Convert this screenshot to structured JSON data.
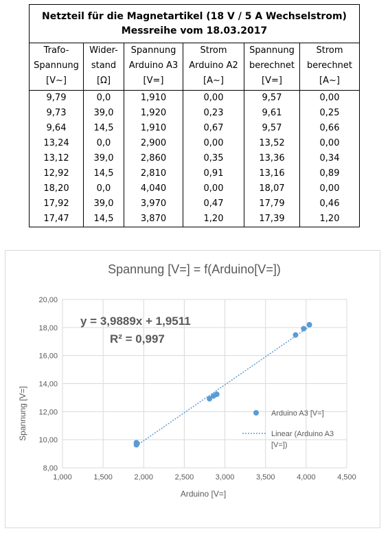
{
  "table": {
    "title_line1": "Netzteil für die Magnetartikel (18 V / 5 A Wechselstrom)",
    "title_line2": "Messreihe vom 18.03.2017",
    "headers": [
      [
        "Trafo-",
        "Spannung",
        "[V~]"
      ],
      [
        "Wider-",
        "stand",
        "[Ω]"
      ],
      [
        "Spannung",
        "Arduino A3",
        "[V=]"
      ],
      [
        "Strom",
        "Arduino A2",
        "[A~]"
      ],
      [
        "Spannung",
        "berechnet",
        "[V=]"
      ],
      [
        "Strom",
        "berechnet",
        "[A~]"
      ]
    ],
    "rows": [
      [
        "9,79",
        "0,0",
        "1,910",
        "0,00",
        "9,57",
        "0,00"
      ],
      [
        "9,73",
        "39,0",
        "1,920",
        "0,23",
        "9,61",
        "0,25"
      ],
      [
        "9,64",
        "14,5",
        "1,910",
        "0,67",
        "9,57",
        "0,66"
      ],
      [
        "13,24",
        "0,0",
        "2,900",
        "0,00",
        "13,52",
        "0,00"
      ],
      [
        "13,12",
        "39,0",
        "2,860",
        "0,35",
        "13,36",
        "0,34"
      ],
      [
        "12,92",
        "14,5",
        "2,810",
        "0,91",
        "13,16",
        "0,89"
      ],
      [
        "18,20",
        "0,0",
        "4,040",
        "0,00",
        "18,07",
        "0,00"
      ],
      [
        "17,92",
        "39,0",
        "3,970",
        "0,47",
        "17,79",
        "0,46"
      ],
      [
        "17,47",
        "14,5",
        "3,870",
        "1,20",
        "17,39",
        "1,20"
      ]
    ]
  },
  "chart_data": {
    "type": "scatter",
    "title": "Spannung [V=] = f(Arduino[V=])",
    "xlabel": "Arduino [V=]",
    "ylabel": "Spannung [V=]",
    "xlim": [
      1.0,
      4.5
    ],
    "ylim": [
      8.0,
      20.0
    ],
    "x_ticks": [
      "1,000",
      "1,500",
      "2,000",
      "2,500",
      "3,000",
      "3,500",
      "4,000",
      "4,500"
    ],
    "y_ticks": [
      "8,00",
      "10,00",
      "12,00",
      "14,00",
      "16,00",
      "18,00",
      "20,00"
    ],
    "grid": true,
    "legend_position": "right",
    "series": [
      {
        "name": "Arduino A3 [V=]",
        "color": "#5b9bd5",
        "x": [
          1.91,
          1.92,
          1.91,
          2.9,
          2.86,
          2.81,
          4.04,
          3.97,
          3.87
        ],
        "y": [
          9.79,
          9.73,
          9.64,
          13.24,
          13.12,
          12.92,
          18.2,
          17.92,
          17.47
        ]
      }
    ],
    "trendline": {
      "type": "linear",
      "legend_line1": "Linear (Arduino A3",
      "legend_line2": "[V=])",
      "slope": 3.9889,
      "intercept": 1.9511,
      "x_range": [
        1.91,
        4.04
      ],
      "equation": "y = 3,9889x + 1,9511",
      "r_squared": "R² = 0,997",
      "color": "#5b9bd5"
    }
  }
}
